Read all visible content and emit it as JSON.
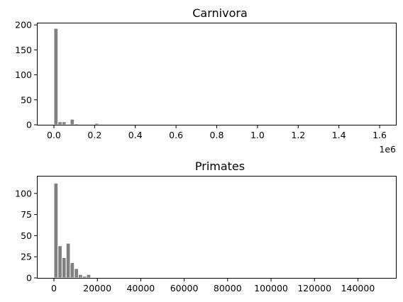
{
  "chart_data": [
    {
      "type": "bar",
      "title": "Carnivora",
      "xlabel": "",
      "ylabel": "",
      "x_offset_label": "1e6",
      "xlim": [
        -80000,
        1680000
      ],
      "ylim": [
        0,
        203
      ],
      "xticks": [
        0,
        200000,
        400000,
        600000,
        800000,
        1000000,
        1200000,
        1400000,
        1600000
      ],
      "xtick_labels": [
        "0.0",
        "0.2",
        "0.4",
        "0.6",
        "0.8",
        "1.0",
        "1.2",
        "1.4",
        "1.6"
      ],
      "yticks": [
        0,
        50,
        100,
        150,
        200
      ],
      "ytick_labels": [
        "0",
        "50",
        "100",
        "150",
        "200"
      ],
      "bin_width": 20000,
      "bin_starts": [
        0,
        20000,
        40000,
        60000,
        80000,
        100000,
        120000,
        140000,
        160000,
        180000,
        200000,
        220000,
        240000,
        260000,
        280000,
        300000
      ],
      "values": [
        193,
        6,
        6,
        1,
        11,
        2,
        1,
        0,
        0,
        0,
        3,
        0,
        0,
        0,
        1,
        0
      ]
    },
    {
      "type": "bar",
      "title": "Primates",
      "xlabel": "",
      "ylabel": "",
      "xlim": [
        -7500,
        157500
      ],
      "ylim": [
        0,
        120
      ],
      "xticks": [
        0,
        20000,
        40000,
        60000,
        80000,
        100000,
        120000,
        140000
      ],
      "xtick_labels": [
        "0",
        "20000",
        "40000",
        "60000",
        "80000",
        "100000",
        "120000",
        "140000"
      ],
      "yticks": [
        0,
        25,
        50,
        75,
        100
      ],
      "ytick_labels": [
        "0",
        "25",
        "50",
        "75",
        "100"
      ],
      "bin_width": 1880,
      "bin_starts": [
        0,
        1880,
        3760,
        5640,
        7520,
        9400,
        11280,
        13160,
        15040
      ],
      "values": [
        112,
        38,
        24,
        41,
        18,
        11,
        4,
        2,
        4
      ]
    }
  ]
}
